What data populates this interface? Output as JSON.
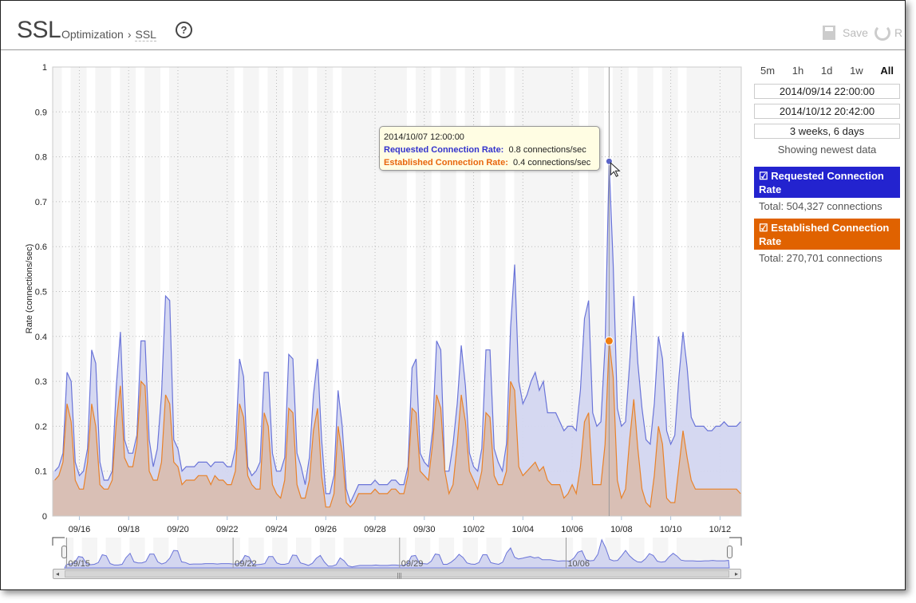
{
  "header": {
    "title": "SSL",
    "breadcrumb_parent": "Optimization",
    "breadcrumb_sep": "›",
    "breadcrumb_current": "SSL",
    "help_glyph": "?",
    "save_label": "Save",
    "revert_label": "R"
  },
  "range_panel": {
    "buttons": [
      "5m",
      "1h",
      "1d",
      "1w",
      "All"
    ],
    "active": "All",
    "start": "2014/09/14 22:00:00",
    "end": "2014/10/12 20:42:00",
    "duration": "3 weeks, 6 days",
    "status": "Showing newest data"
  },
  "legend": [
    {
      "label": "Requested Connection Rate",
      "checkbox": "☑",
      "total": "Total: 504,327 connections",
      "color": "#2323cf"
    },
    {
      "label": "Established Connection Rate",
      "checkbox": "☑",
      "total": "Total: 270,701 connections",
      "color": "#e06200"
    }
  ],
  "tooltip": {
    "time": "2014/10/07 12:00:00",
    "rows": [
      {
        "label": "Requested Connection Rate:",
        "value": "0.8 connections/sec",
        "color": "#3333cc"
      },
      {
        "label": "Established Connection Rate:",
        "value": "0.4 connections/sec",
        "color": "#e8660e"
      }
    ]
  },
  "chart_data": {
    "type": "area",
    "ylabel": "Rate (connections/sec)",
    "ylim": [
      0,
      1
    ],
    "yticks": [
      "0",
      "0.1",
      "0.2",
      "0.3",
      "0.4",
      "0.5",
      "0.6",
      "0.7",
      "0.8",
      "0.9",
      "1"
    ],
    "xlim": [
      "2014/09/14 22:00",
      "2014/10/12 20:42"
    ],
    "xticks": [
      "09/16",
      "09/18",
      "09/20",
      "09/22",
      "09/24",
      "09/26",
      "09/28",
      "09/30",
      "10/02",
      "10/04",
      "10/06",
      "10/08",
      "10/10",
      "10/12"
    ],
    "x_start": "2014/09/15 00:00",
    "x_interval_hours": 4,
    "grid": true,
    "highlight": "2014/10/07 12:00",
    "series": [
      {
        "name": "Requested Connection Rate",
        "color": "#6a74d8",
        "fill": "#d3d6f0",
        "values": [
          0.1,
          0.11,
          0.14,
          0.32,
          0.3,
          0.12,
          0.09,
          0.1,
          0.15,
          0.37,
          0.34,
          0.12,
          0.08,
          0.08,
          0.1,
          0.29,
          0.41,
          0.17,
          0.14,
          0.14,
          0.18,
          0.39,
          0.39,
          0.17,
          0.11,
          0.15,
          0.27,
          0.49,
          0.48,
          0.17,
          0.15,
          0.1,
          0.11,
          0.11,
          0.11,
          0.12,
          0.12,
          0.12,
          0.11,
          0.12,
          0.12,
          0.12,
          0.11,
          0.11,
          0.15,
          0.35,
          0.31,
          0.11,
          0.09,
          0.1,
          0.12,
          0.32,
          0.32,
          0.14,
          0.1,
          0.1,
          0.13,
          0.36,
          0.35,
          0.14,
          0.11,
          0.07,
          0.13,
          0.27,
          0.35,
          0.17,
          0.05,
          0.05,
          0.09,
          0.28,
          0.2,
          0.06,
          0.03,
          0.05,
          0.07,
          0.07,
          0.07,
          0.07,
          0.08,
          0.07,
          0.07,
          0.07,
          0.08,
          0.08,
          0.07,
          0.07,
          0.11,
          0.33,
          0.35,
          0.14,
          0.12,
          0.11,
          0.19,
          0.39,
          0.37,
          0.1,
          0.1,
          0.16,
          0.25,
          0.38,
          0.29,
          0.14,
          0.11,
          0.1,
          0.15,
          0.37,
          0.37,
          0.15,
          0.12,
          0.1,
          0.16,
          0.42,
          0.56,
          0.3,
          0.25,
          0.27,
          0.3,
          0.32,
          0.28,
          0.3,
          0.23,
          0.23,
          0.23,
          0.21,
          0.19,
          0.2,
          0.2,
          0.19,
          0.28,
          0.44,
          0.48,
          0.23,
          0.2,
          0.21,
          0.38,
          0.79,
          0.56,
          0.24,
          0.2,
          0.21,
          0.34,
          0.49,
          0.34,
          0.24,
          0.17,
          0.16,
          0.25,
          0.4,
          0.35,
          0.19,
          0.16,
          0.18,
          0.31,
          0.41,
          0.33,
          0.22,
          0.2,
          0.2,
          0.2,
          0.19,
          0.19,
          0.2,
          0.2,
          0.21,
          0.2,
          0.2,
          0.2,
          0.21
        ]
      },
      {
        "name": "Established Connection Rate",
        "color": "#e8822a",
        "fill": "#d9bfb5",
        "values": [
          0.08,
          0.09,
          0.12,
          0.25,
          0.21,
          0.08,
          0.06,
          0.06,
          0.12,
          0.25,
          0.2,
          0.07,
          0.06,
          0.06,
          0.08,
          0.21,
          0.29,
          0.13,
          0.11,
          0.11,
          0.16,
          0.3,
          0.29,
          0.1,
          0.08,
          0.08,
          0.12,
          0.27,
          0.25,
          0.12,
          0.11,
          0.07,
          0.08,
          0.08,
          0.08,
          0.09,
          0.09,
          0.09,
          0.07,
          0.09,
          0.08,
          0.08,
          0.07,
          0.07,
          0.1,
          0.25,
          0.22,
          0.09,
          0.07,
          0.06,
          0.06,
          0.23,
          0.2,
          0.07,
          0.05,
          0.04,
          0.08,
          0.24,
          0.23,
          0.07,
          0.04,
          0.04,
          0.08,
          0.19,
          0.24,
          0.09,
          0.02,
          0.02,
          0.05,
          0.2,
          0.14,
          0.03,
          0.02,
          0.03,
          0.05,
          0.05,
          0.05,
          0.05,
          0.06,
          0.05,
          0.05,
          0.05,
          0.06,
          0.06,
          0.05,
          0.05,
          0.09,
          0.24,
          0.23,
          0.1,
          0.09,
          0.08,
          0.16,
          0.27,
          0.24,
          0.1,
          0.05,
          0.07,
          0.16,
          0.27,
          0.21,
          0.1,
          0.08,
          0.06,
          0.1,
          0.23,
          0.22,
          0.09,
          0.07,
          0.07,
          0.1,
          0.3,
          0.28,
          0.11,
          0.09,
          0.1,
          0.11,
          0.12,
          0.1,
          0.11,
          0.08,
          0.07,
          0.07,
          0.07,
          0.04,
          0.05,
          0.07,
          0.05,
          0.11,
          0.21,
          0.23,
          0.07,
          0.07,
          0.07,
          0.16,
          0.39,
          0.31,
          0.08,
          0.04,
          0.06,
          0.17,
          0.26,
          0.15,
          0.06,
          0.03,
          0.02,
          0.09,
          0.2,
          0.16,
          0.04,
          0.03,
          0.03,
          0.11,
          0.19,
          0.13,
          0.08,
          0.06,
          0.06,
          0.06,
          0.06,
          0.06,
          0.06,
          0.06,
          0.06,
          0.06,
          0.06,
          0.06,
          0.05
        ]
      }
    ],
    "navigator": {
      "labels": [
        "09/15",
        "09/22",
        "09/29",
        "10/06"
      ]
    }
  }
}
